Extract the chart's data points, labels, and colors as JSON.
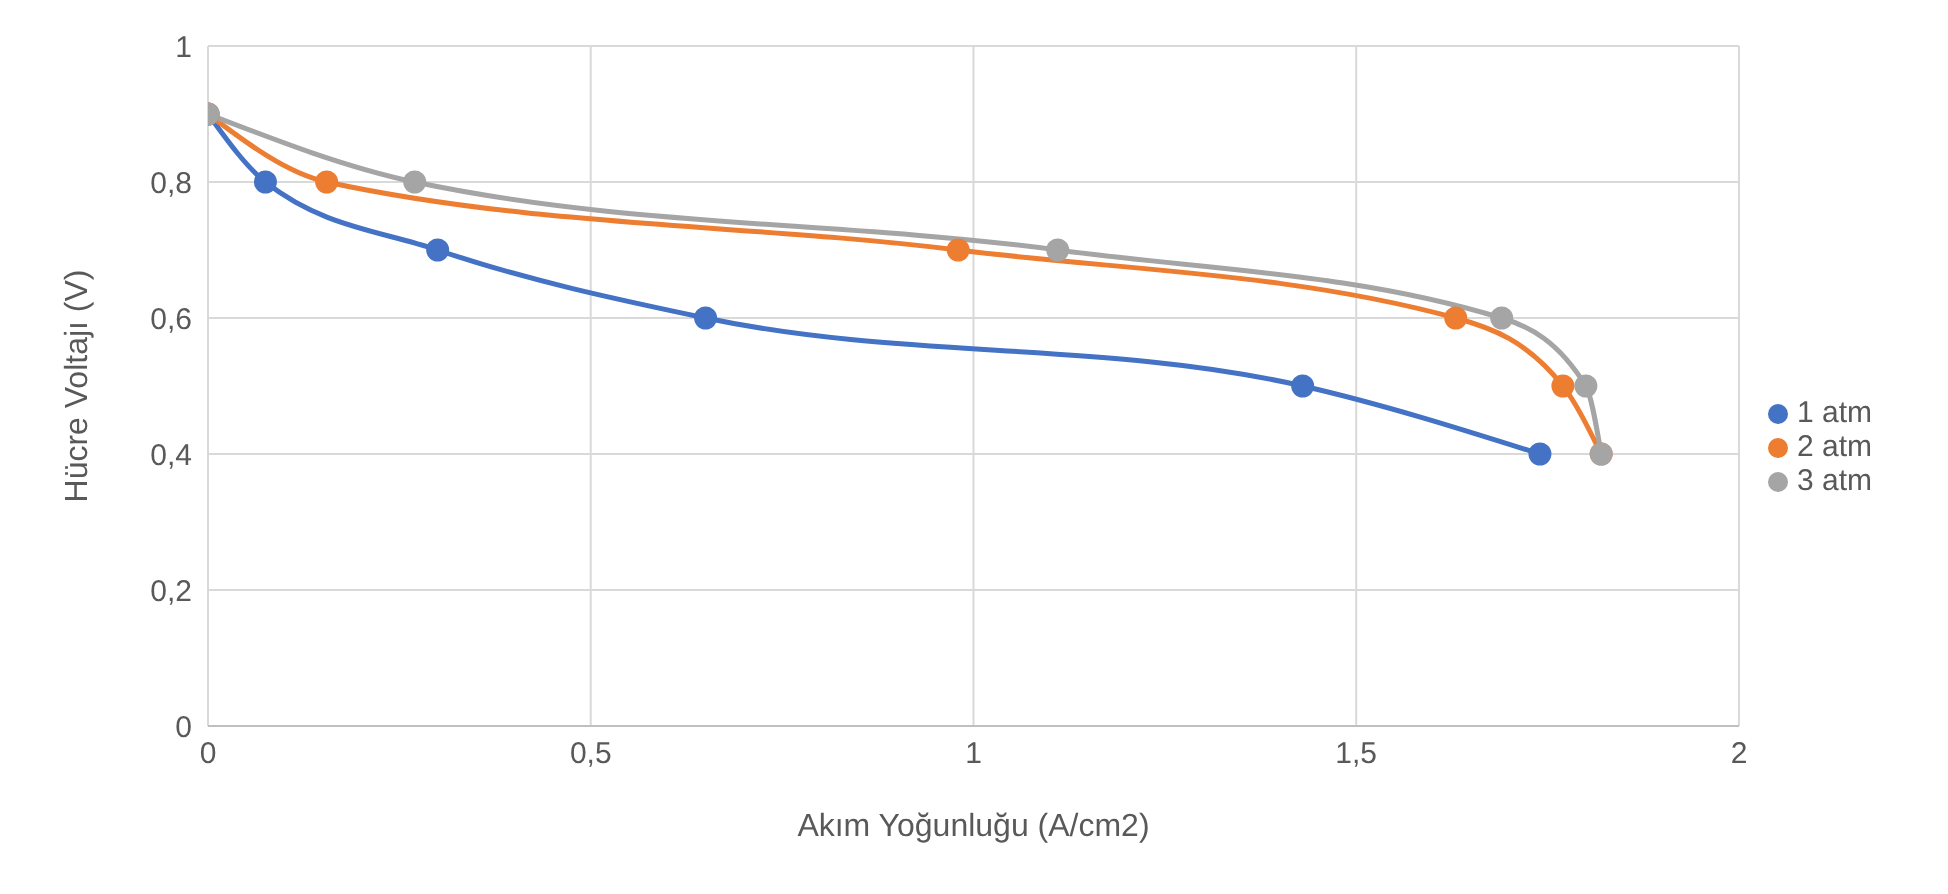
{
  "chart_data": {
    "type": "line",
    "xlabel": "Akım Yoğunluğu (A/cm2)",
    "ylabel": "Hücre Voltajı (V)",
    "xlim": [
      0,
      2
    ],
    "xticks": [
      0,
      {
        "value": 0.5,
        "label": "0,5"
      },
      1,
      {
        "value": 1.5,
        "label": "1,5"
      },
      2
    ],
    "ylim": [
      0,
      1
    ],
    "yticks": [
      0,
      {
        "value": 0.2,
        "label": "0,2"
      },
      {
        "value": 0.4,
        "label": "0,4"
      },
      {
        "value": 0.6,
        "label": "0,6"
      },
      {
        "value": 0.8,
        "label": "0,8"
      },
      1
    ],
    "grid": true,
    "legend": "right",
    "marker": "circle",
    "line_style": "solid",
    "series": [
      {
        "name": "1 atm",
        "color": "#4472c4",
        "x": [
          0,
          0.075,
          0.3,
          0.65,
          1.43,
          1.74
        ],
        "values": [
          0.9,
          0.8,
          0.7,
          0.6,
          0.5,
          0.4
        ]
      },
      {
        "name": "2 atm",
        "color": "#ed7d31",
        "x": [
          0,
          0.155,
          0.98,
          1.63,
          1.77,
          1.82
        ],
        "values": [
          0.9,
          0.8,
          0.7,
          0.6,
          0.5,
          0.4
        ]
      },
      {
        "name": "3 atm",
        "color": "#a5a5a5",
        "x": [
          0,
          0.27,
          1.11,
          1.69,
          1.8,
          1.82
        ],
        "values": [
          0.9,
          0.8,
          0.7,
          0.6,
          0.5,
          0.4
        ]
      }
    ]
  }
}
